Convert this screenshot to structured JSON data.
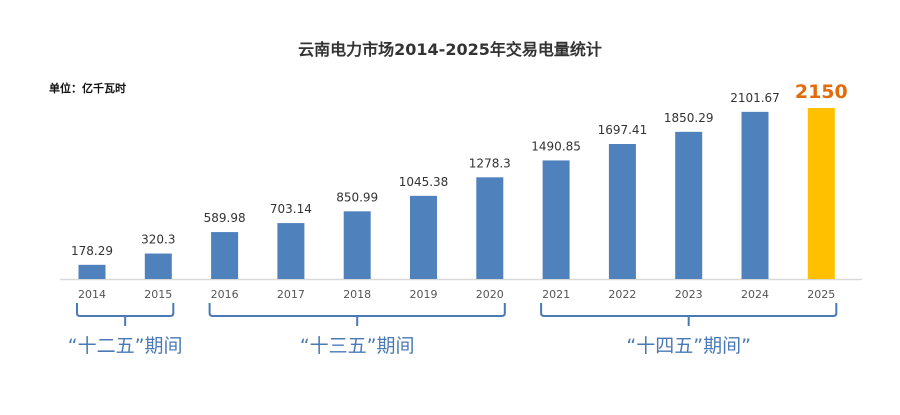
{
  "chart_data": {
    "type": "bar",
    "title": "云南电力市场2014-2025年交易电量统计",
    "unit_label": "单位：亿千瓦时",
    "categories": [
      "2014",
      "2015",
      "2016",
      "2017",
      "2018",
      "2019",
      "2020",
      "2021",
      "2022",
      "2023",
      "2024",
      "2025"
    ],
    "values": [
      178.29,
      320.3,
      589.98,
      703.14,
      850.99,
      1045.38,
      1278.3,
      1490.85,
      1697.41,
      1850.29,
      2101.67,
      2150
    ],
    "value_labels": [
      "178.29",
      "320.3",
      "589.98",
      "703.14",
      "850.99",
      "1045.38",
      "1278.3",
      "1490.85",
      "1697.41",
      "1850.29",
      "2101.67",
      "2150"
    ],
    "highlight_index": 11,
    "colors": {
      "bar": "#4f81bd",
      "highlight": "#ffc000",
      "highlight_label": "#e36c0a",
      "period": "#4a7ab5"
    },
    "ylim": [
      0,
      2150
    ],
    "grid": false,
    "periods": [
      {
        "label": "“十二五”期间",
        "from": "2014",
        "to": "2015"
      },
      {
        "label": "“十三五”期间",
        "from": "2016",
        "to": "2020"
      },
      {
        "label": "“十四五”期间”",
        "from": "2021",
        "to": "2025"
      }
    ]
  }
}
